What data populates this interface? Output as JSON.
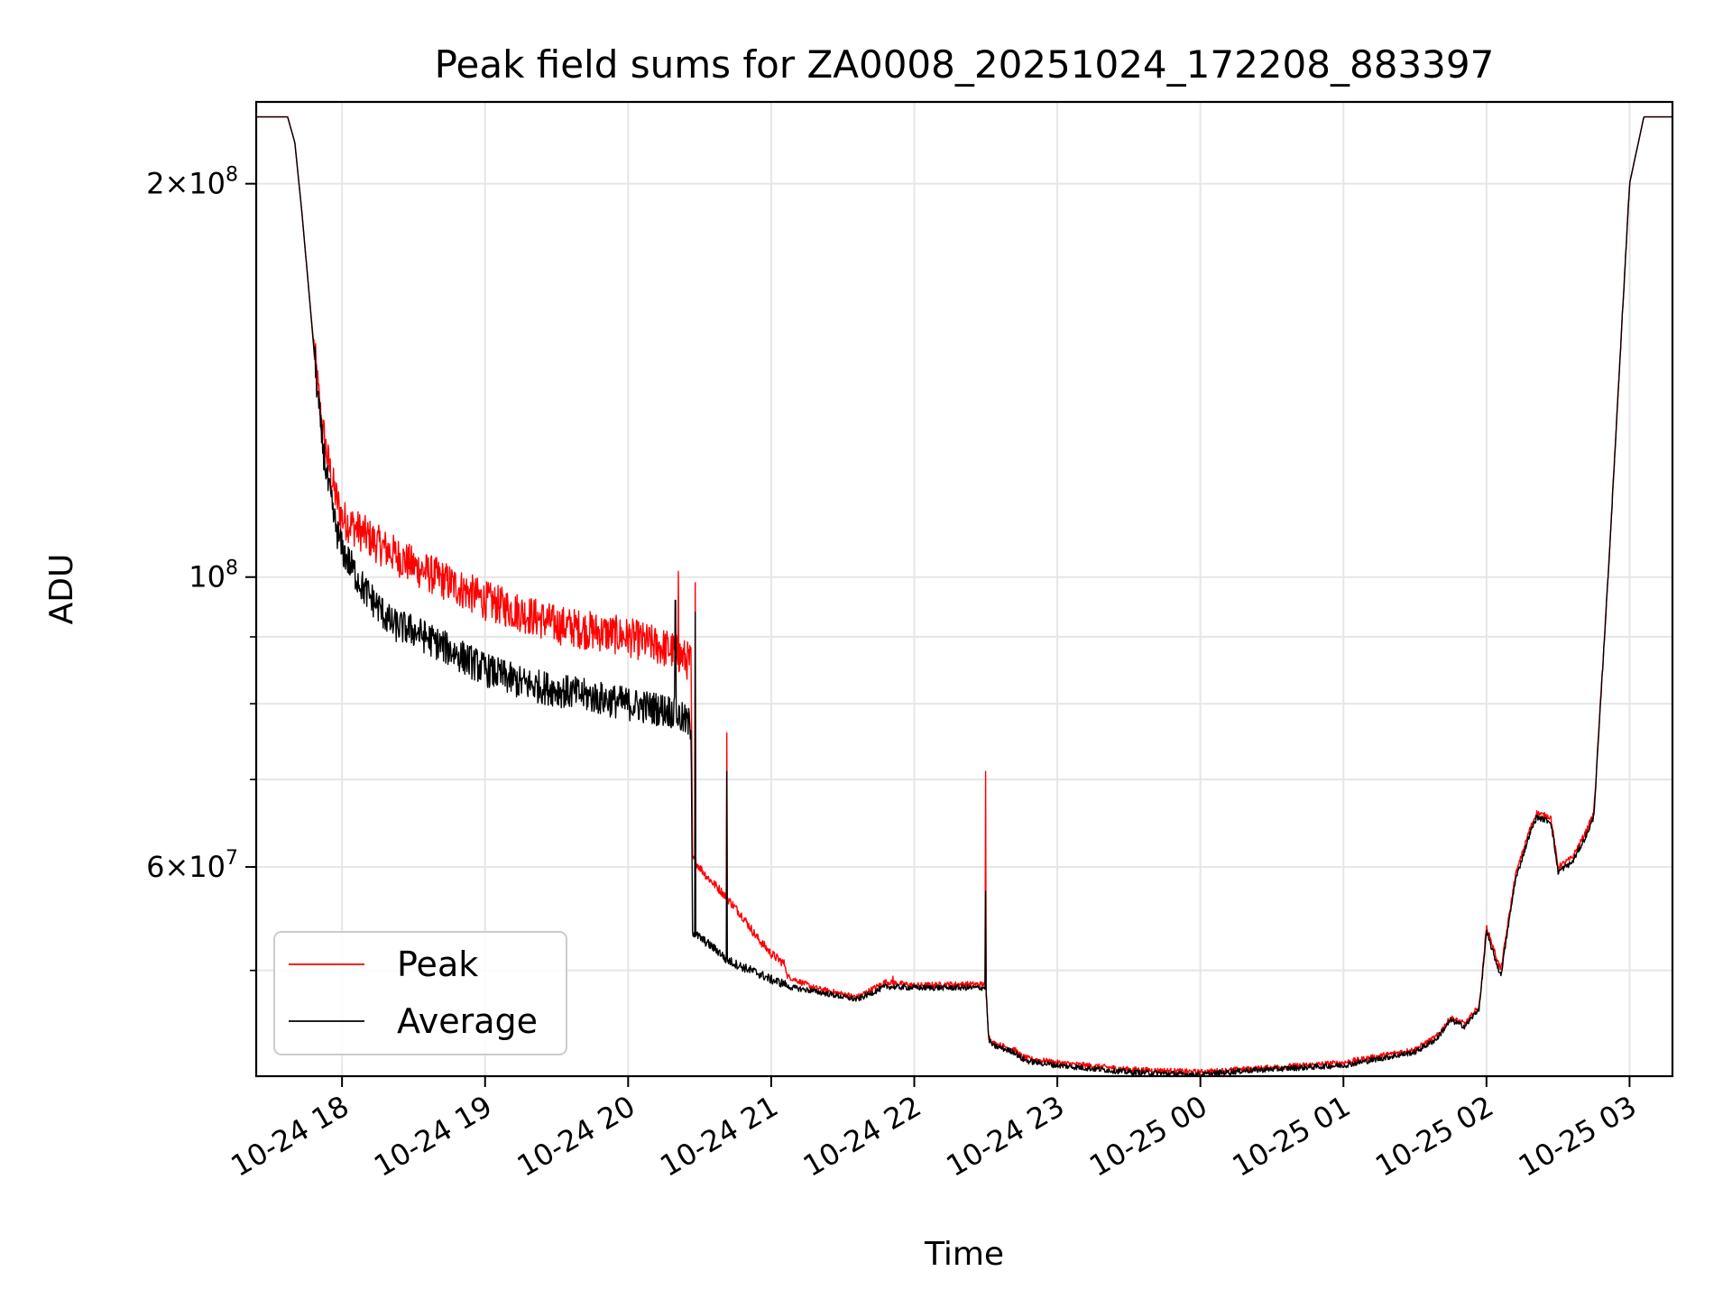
{
  "chart_data": {
    "type": "line",
    "title": "Peak field sums for ZA0008_20251024_172208_883397",
    "xlabel": "Time",
    "ylabel": "ADU",
    "yscale": "log",
    "grid": true,
    "legend_placement": "lower-left",
    "xlim_hours": [
      -0.6,
      9.3
    ],
    "ylim": [
      41500000,
      231000000
    ],
    "x_ticks": [
      {
        "hours": 0,
        "label": "10-24 18"
      },
      {
        "hours": 1,
        "label": "10-24 19"
      },
      {
        "hours": 2,
        "label": "10-24 20"
      },
      {
        "hours": 3,
        "label": "10-24 21"
      },
      {
        "hours": 4,
        "label": "10-24 22"
      },
      {
        "hours": 5,
        "label": "10-24 23"
      },
      {
        "hours": 6,
        "label": "10-25 00"
      },
      {
        "hours": 7,
        "label": "10-25 01"
      },
      {
        "hours": 8,
        "label": "10-25 02"
      },
      {
        "hours": 9,
        "label": "10-25 03"
      }
    ],
    "y_major_ticks": [
      {
        "value": 200000000,
        "mantissa": "2",
        "exponent": "8"
      },
      {
        "value": 100000000,
        "mantissa": "",
        "exponent": "8"
      },
      {
        "value": 60000000,
        "mantissa": "6",
        "exponent": "7"
      }
    ],
    "y_minor_ticks": [
      50000000,
      70000000,
      80000000,
      90000000
    ],
    "series": [
      {
        "name": "Peak",
        "color": "#ff0000",
        "x_hours": [
          -0.6,
          -0.42,
          -0.38,
          -0.33,
          -0.28,
          -0.22,
          -0.15,
          -0.1,
          -0.05,
          0.0,
          0.25,
          0.5,
          0.75,
          1.0,
          1.25,
          1.5,
          1.75,
          2.0,
          2.3,
          2.44,
          2.45,
          2.55,
          2.65,
          2.68,
          2.8,
          2.9,
          3.0,
          3.1,
          3.11,
          3.3,
          3.6,
          3.8,
          4.0,
          4.3,
          4.5,
          4.52,
          4.55,
          4.7,
          4.75,
          4.8,
          5.0,
          5.5,
          6.0,
          6.3,
          7.0,
          7.5,
          7.65,
          7.75,
          7.85,
          7.95,
          8.0,
          8.1,
          8.2,
          8.3,
          8.35,
          8.45,
          8.5,
          8.6,
          8.7,
          8.75,
          8.85,
          9.0,
          9.1
        ],
        "y": [
          225000000,
          225000000,
          225000000,
          215000000,
          190000000,
          160000000,
          133000000,
          123000000,
          116000000,
          111000000,
          106000000,
          102000000,
          99000000,
          96000000,
          94000000,
          92000000,
          91000000,
          90000000,
          88000000,
          86000000,
          61000000,
          59000000,
          57500000,
          57000000,
          55000000,
          53000000,
          51500000,
          50500000,
          49500000,
          48500000,
          47700000,
          49000000,
          48700000,
          48800000,
          48800000,
          44500000,
          44000000,
          43500000,
          43000000,
          42800000,
          42500000,
          42000000,
          41800000,
          42000000,
          42500000,
          43500000,
          44500000,
          46000000,
          45500000,
          47000000,
          54000000,
          50000000,
          59000000,
          64000000,
          66000000,
          65500000,
          60000000,
          61000000,
          64000000,
          66000000,
          100000000,
          200000000,
          225000000
        ],
        "noise": [
          [
            -0.2,
            2.44,
            0.035
          ],
          [
            2.45,
            3.1,
            0.008
          ],
          [
            3.1,
            9.0,
            0.005
          ]
        ],
        "spikes": [
          [
            2.35,
            101000000
          ],
          [
            2.47,
            99000000
          ],
          [
            2.69,
            76000000
          ],
          [
            4.5,
            71000000
          ],
          [
            3.85,
            49500000
          ],
          [
            4.25,
            49000000
          ]
        ]
      },
      {
        "name": "Average",
        "color": "#000000",
        "x_hours": [
          -0.6,
          -0.42,
          -0.38,
          -0.33,
          -0.28,
          -0.22,
          -0.15,
          -0.1,
          -0.05,
          0.0,
          0.15,
          0.25,
          0.35,
          0.5,
          0.75,
          1.0,
          1.25,
          1.5,
          1.75,
          2.0,
          2.3,
          2.44,
          2.45,
          2.55,
          2.65,
          2.68,
          2.8,
          2.9,
          3.0,
          3.1,
          3.11,
          3.3,
          3.6,
          3.8,
          4.0,
          4.3,
          4.5,
          4.52,
          4.55,
          4.7,
          4.75,
          4.8,
          5.0,
          5.5,
          6.0,
          6.3,
          7.0,
          7.5,
          7.65,
          7.75,
          7.85,
          7.95,
          8.0,
          8.1,
          8.2,
          8.3,
          8.35,
          8.45,
          8.5,
          8.6,
          8.7,
          8.75,
          8.85,
          9.0,
          9.1
        ],
        "y": [
          225000000,
          225000000,
          225000000,
          215000000,
          190000000,
          160000000,
          130000000,
          118000000,
          110000000,
          105000000,
          98000000,
          95000000,
          92000000,
          91000000,
          88000000,
          85000000,
          83000000,
          82000000,
          81000000,
          80000000,
          79000000,
          77000000,
          53500000,
          52500000,
          51500000,
          51000000,
          50300000,
          49800000,
          49200000,
          48800000,
          48600000,
          48200000,
          47500000,
          48600000,
          48500000,
          48500000,
          48500000,
          44300000,
          43800000,
          43300000,
          42800000,
          42600000,
          42300000,
          41800000,
          41600000,
          41900000,
          42300000,
          43300000,
          44300000,
          45800000,
          45300000,
          46800000,
          53500000,
          49500000,
          58500000,
          63500000,
          65500000,
          65000000,
          59500000,
          60500000,
          63500000,
          65500000,
          100000000,
          200000000,
          225000000
        ],
        "noise": [
          [
            -0.2,
            2.44,
            0.03
          ],
          [
            2.45,
            3.1,
            0.008
          ],
          [
            3.1,
            9.0,
            0.005
          ]
        ],
        "spikes": [
          [
            2.33,
            96000000
          ],
          [
            2.47,
            94000000
          ],
          [
            2.69,
            71000000
          ],
          [
            4.5,
            57500000
          ]
        ]
      }
    ]
  }
}
